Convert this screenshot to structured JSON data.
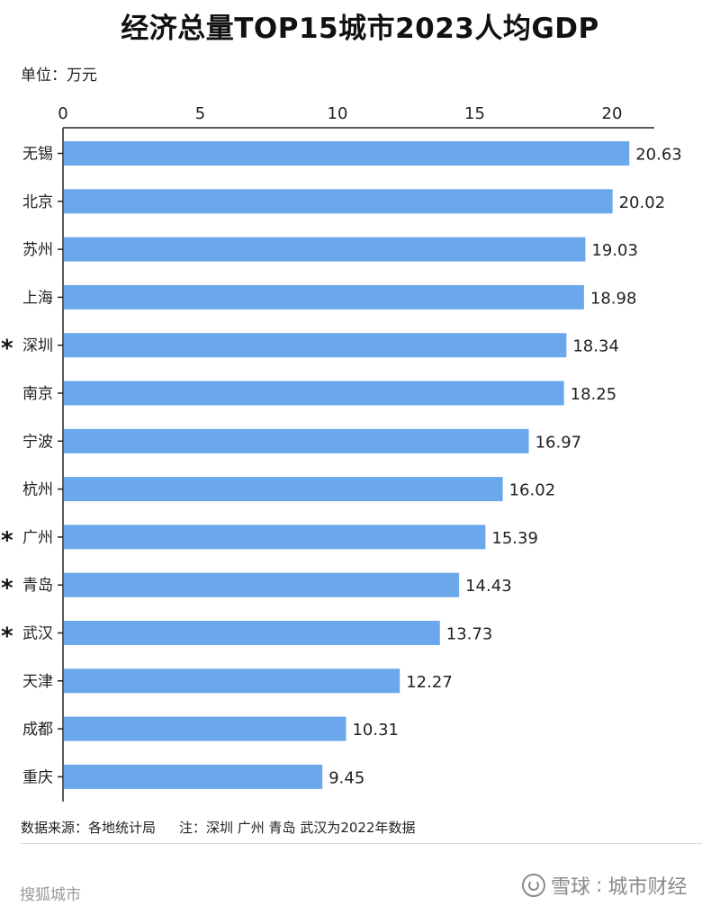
{
  "unit_label": "单位：万元",
  "footer": {
    "source": "数据来源：各地统计局",
    "note": "注：深圳 广州 青岛 武汉为2022年数据"
  },
  "watermark": {
    "left": "搜狐城市",
    "right_brand": "雪球",
    "right_sep": ":",
    "right_author": "城市财经"
  },
  "colors": {
    "bar": "#6aa7eb",
    "axis": "#222222"
  },
  "chart_data": {
    "type": "bar",
    "orientation": "horizontal",
    "title": "经济总量TOP15城市2023人均GDP",
    "xlim": [
      0,
      21.5
    ],
    "ticks": [
      0,
      5,
      10,
      15,
      20
    ],
    "categories": [
      "无锡",
      "北京",
      "苏州",
      "上海",
      "深圳",
      "南京",
      "宁波",
      "杭州",
      "广州",
      "青岛",
      "武汉",
      "天津",
      "成都",
      "重庆"
    ],
    "values": [
      20.63,
      20.02,
      19.03,
      18.98,
      18.34,
      18.25,
      16.97,
      16.02,
      15.39,
      14.43,
      13.73,
      12.27,
      10.31,
      9.45
    ],
    "value_labels": [
      "20.63",
      "20.02",
      "19.03",
      "18.98",
      "18.34",
      "18.25",
      "16.97",
      "16.02",
      "15.39",
      "14.43",
      "13.73",
      "12.27",
      "10.31",
      "9.45"
    ],
    "marker_symbol": "*",
    "marked": [
      false,
      false,
      false,
      false,
      true,
      false,
      false,
      false,
      true,
      true,
      true,
      false,
      false,
      false
    ]
  }
}
